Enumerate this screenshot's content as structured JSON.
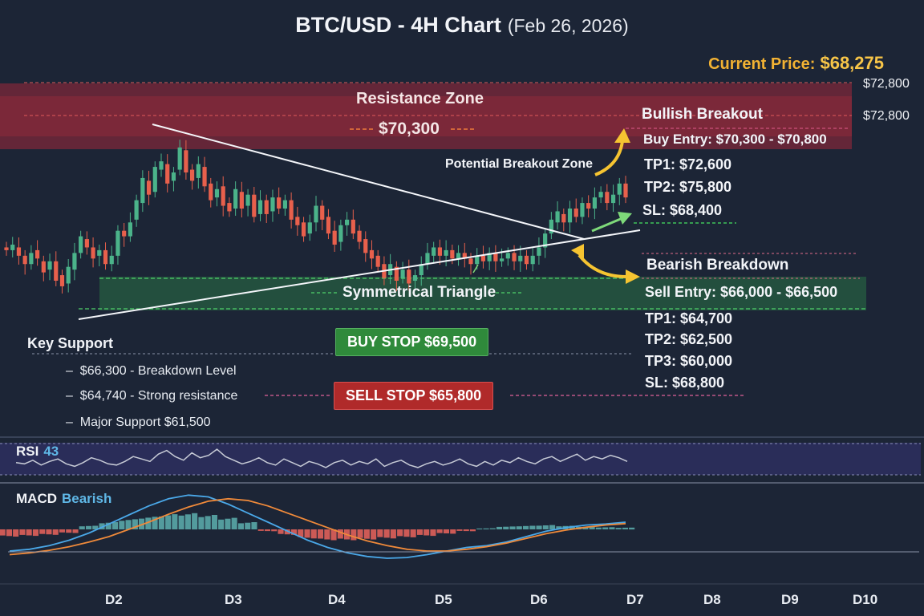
{
  "title": "BTC/USD - 4H Chart",
  "date": "(Feb 26, 2026)",
  "current_price": {
    "label": "Current Price:",
    "value": "$68,275"
  },
  "resistance": {
    "label": "Resistance Zone",
    "level": "$70,300",
    "price_label_1": "$72,800",
    "price_label_2": "$72,800"
  },
  "patterns": {
    "triangle": "Symmetrical Triangle",
    "breakout_zone": "Potential Breakout Zone"
  },
  "bullish": {
    "title": "Bullish Breakout",
    "entry": "Buy Entry: $70,300 - $70,800",
    "tp1": "TP1:  $72,600",
    "tp2": "TP2:  $75,800",
    "sl": "SL: $68,400"
  },
  "bearish": {
    "title": "Bearish Breakdown",
    "entry": "Sell Entry: $66,000 - $66,500",
    "tp1": "TP1: $64,700",
    "tp2": "TP2: $62,500",
    "tp3": "TP3: $60,000",
    "sl": "SL: $68,800"
  },
  "buttons": {
    "buy_stop": "BUY STOP $69,500",
    "sell_stop": "SELL STOP $65,800"
  },
  "support": {
    "title": "Key Support",
    "items": [
      "$66,300 - Breakdown Level",
      "$64,740 - Strong resistance",
      "Major Support  $61,500"
    ]
  },
  "rsi": {
    "label": "RSI",
    "value": "43"
  },
  "macd": {
    "label": "MACD",
    "value": "Bearish"
  },
  "colors": {
    "bg": "#1c2536",
    "up": "#4bb38a",
    "down": "#e8604c",
    "resistance": "#c0303c",
    "support": "#2a7a45",
    "accent": "#f2b233"
  },
  "chart_data": {
    "type": "candlestick",
    "title": "BTC/USD - 4H Chart",
    "x_ticks": [
      "D2",
      "D3",
      "D4",
      "D5",
      "D6",
      "D7",
      "D8",
      "D9",
      "D10"
    ],
    "ylim": [
      60500,
      73500
    ],
    "resistance_zone": [
      70300,
      72800
    ],
    "triangle_upper": [
      [
        2.3,
        70400
      ],
      [
        6.4,
        66700
      ]
    ],
    "triangle_lower": [
      [
        1.85,
        63600
      ],
      [
        6.9,
        67100
      ]
    ],
    "candles": [
      [
        66900,
        66800
      ],
      [
        66800,
        67000
      ],
      [
        66900,
        66600
      ],
      [
        66600,
        66300
      ],
      [
        66300,
        66700
      ],
      [
        66800,
        66500
      ],
      [
        66400,
        66000
      ],
      [
        66100,
        66400
      ],
      [
        66400,
        65700
      ],
      [
        65900,
        65500
      ],
      [
        65600,
        66200
      ],
      [
        66100,
        66700
      ],
      [
        66700,
        67300
      ],
      [
        67200,
        66900
      ],
      [
        66900,
        66500
      ],
      [
        66600,
        66800
      ],
      [
        66800,
        66300
      ],
      [
        66300,
        66600
      ],
      [
        66600,
        67500
      ],
      [
        67500,
        67300
      ],
      [
        67300,
        67800
      ],
      [
        67900,
        68600
      ],
      [
        68500,
        69400
      ],
      [
        69300,
        68800
      ],
      [
        68900,
        69800
      ],
      [
        69700,
        70000
      ],
      [
        69900,
        69200
      ],
      [
        69300,
        69600
      ],
      [
        69700,
        70500
      ],
      [
        70400,
        69600
      ],
      [
        69700,
        69300
      ],
      [
        69400,
        69900
      ],
      [
        69800,
        69100
      ],
      [
        69200,
        68600
      ],
      [
        68700,
        69000
      ],
      [
        69100,
        68400
      ],
      [
        68500,
        68200
      ],
      [
        68300,
        69000
      ],
      [
        68900,
        68300
      ],
      [
        68400,
        68800
      ],
      [
        68800,
        68000
      ],
      [
        68100,
        68600
      ],
      [
        68600,
        68100
      ],
      [
        68200,
        68700
      ],
      [
        68700,
        68300
      ],
      [
        68300,
        68600
      ],
      [
        68600,
        67900
      ],
      [
        68000,
        67700
      ],
      [
        67800,
        67300
      ],
      [
        67400,
        67800
      ],
      [
        67800,
        68400
      ],
      [
        68400,
        67900
      ],
      [
        68000,
        67400
      ],
      [
        67500,
        67000
      ],
      [
        67100,
        67700
      ],
      [
        67700,
        67900
      ],
      [
        67900,
        67400
      ],
      [
        67500,
        67100
      ],
      [
        67200,
        66700
      ],
      [
        66800,
        66500
      ],
      [
        66600,
        66200
      ],
      [
        66300,
        65800
      ],
      [
        65900,
        66300
      ],
      [
        66200,
        65700
      ],
      [
        65800,
        66100
      ],
      [
        66100,
        65600
      ],
      [
        65700,
        65900
      ],
      [
        65900,
        66300
      ],
      [
        66300,
        66700
      ],
      [
        66600,
        66900
      ],
      [
        66900,
        66600
      ],
      [
        66600,
        66800
      ],
      [
        66800,
        66500
      ],
      [
        66500,
        66700
      ],
      [
        66700,
        66500
      ],
      [
        66500,
        66300
      ],
      [
        66300,
        66600
      ],
      [
        66600,
        66400
      ],
      [
        66400,
        66700
      ],
      [
        66700,
        66400
      ],
      [
        66400,
        66500
      ],
      [
        66500,
        66700
      ],
      [
        66700,
        66400
      ],
      [
        66400,
        66600
      ],
      [
        66600,
        66300
      ],
      [
        66300,
        66600
      ],
      [
        66600,
        66900
      ],
      [
        66900,
        67400
      ],
      [
        67400,
        67900
      ],
      [
        67800,
        68200
      ],
      [
        68100,
        67800
      ],
      [
        67800,
        68300
      ],
      [
        68300,
        68000
      ],
      [
        68000,
        68500
      ],
      [
        68500,
        68300
      ],
      [
        68300,
        68700
      ],
      [
        68700,
        68900
      ],
      [
        68900,
        68500
      ],
      [
        68500,
        68800
      ],
      [
        68800,
        69200
      ],
      [
        69200,
        68700
      ]
    ],
    "rsi_series": [
      45,
      44,
      47,
      43,
      46,
      48,
      44,
      42,
      45,
      49,
      47,
      44,
      43,
      46,
      50,
      48,
      46,
      52,
      55,
      50,
      47,
      53,
      49,
      51,
      56,
      50,
      47,
      44,
      46,
      49,
      45,
      43,
      48,
      45,
      42,
      46,
      44,
      41,
      45,
      47,
      43,
      46,
      44,
      48,
      42,
      45,
      47,
      43,
      41,
      44,
      46,
      43,
      45,
      48,
      44,
      42,
      46,
      43,
      47,
      45,
      49,
      46,
      44,
      48,
      50,
      46,
      49,
      52,
      47,
      50,
      48,
      51,
      49,
      46
    ],
    "macd_series": {
      "macd": [
        -0.6,
        -0.55,
        -0.45,
        -0.3,
        -0.1,
        0.15,
        0.4,
        0.65,
        0.85,
        0.95,
        0.9,
        0.7,
        0.45,
        0.2,
        -0.05,
        -0.3,
        -0.5,
        -0.65,
        -0.75,
        -0.8,
        -0.78,
        -0.7,
        -0.6,
        -0.5,
        -0.45,
        -0.35,
        -0.2,
        -0.05,
        0.05,
        0.12,
        0.15,
        0.2
      ],
      "signal": [
        -0.7,
        -0.65,
        -0.58,
        -0.48,
        -0.35,
        -0.2,
        0.0,
        0.2,
        0.42,
        0.62,
        0.78,
        0.85,
        0.8,
        0.65,
        0.45,
        0.25,
        0.05,
        -0.15,
        -0.32,
        -0.45,
        -0.55,
        -0.6,
        -0.6,
        -0.55,
        -0.48,
        -0.38,
        -0.25,
        -0.12,
        -0.02,
        0.06,
        0.12,
        0.16
      ],
      "histogram": [
        -0.2,
        -0.18,
        -0.15,
        -0.1,
        0.1,
        0.2,
        0.28,
        0.35,
        0.42,
        0.45,
        0.4,
        0.32,
        0.2,
        -0.05,
        -0.15,
        -0.25,
        -0.3,
        -0.3,
        -0.28,
        -0.25,
        -0.22,
        -0.18,
        -0.12,
        -0.05,
        0.03,
        0.08,
        0.1,
        0.12,
        0.1,
        0.08,
        0.06,
        0.05
      ]
    }
  }
}
